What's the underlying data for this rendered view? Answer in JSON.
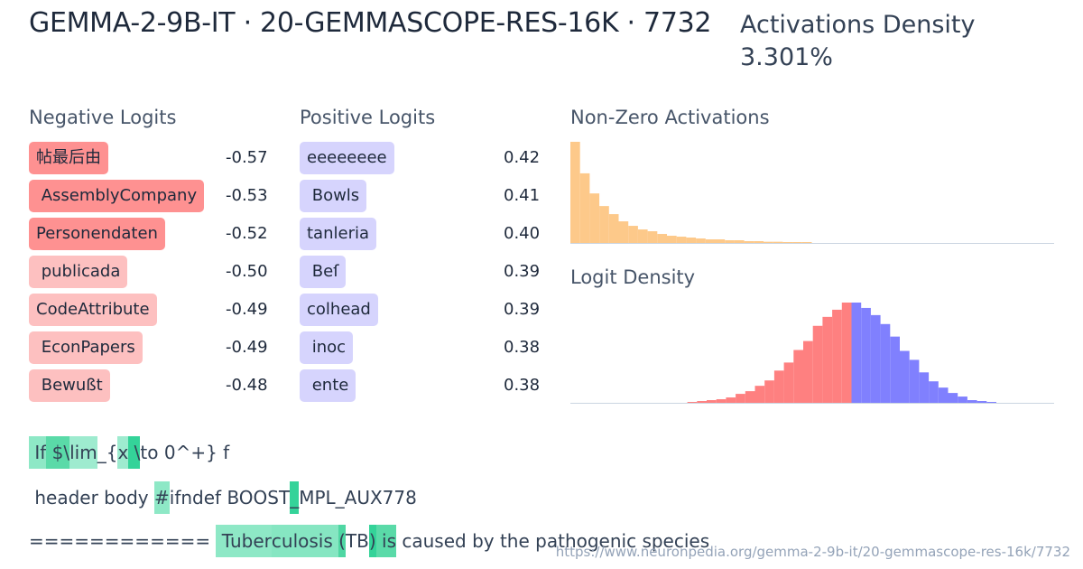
{
  "header": {
    "title": "GEMMA-2-9B-IT · 20-GEMMASCOPE-RES-16K · 7732",
    "density_label": "Activations Density",
    "density_value": "3.301%"
  },
  "negative_logits": {
    "label": "Negative Logits",
    "items": [
      {
        "token": "帖最后由",
        "value": "-0.57",
        "color": "#fe9191"
      },
      {
        "token": " AssemblyCompany",
        "value": "-0.53",
        "color": "#fe9191"
      },
      {
        "token": "Personendaten",
        "value": "-0.52",
        "color": "#fe9191"
      },
      {
        "token": " publicada",
        "value": "-0.50",
        "color": "#fdc0c0"
      },
      {
        "token": "CodeAttribute",
        "value": "-0.49",
        "color": "#fdc0c0"
      },
      {
        "token": " EconPapers",
        "value": "-0.49",
        "color": "#fdc0c0"
      },
      {
        "token": " Bewußt",
        "value": "-0.48",
        "color": "#fdc0c0"
      }
    ]
  },
  "positive_logits": {
    "label": "Positive Logits",
    "items": [
      {
        "token": "eeeeeeee",
        "value": "0.42"
      },
      {
        "token": " Bowls",
        "value": "0.41"
      },
      {
        "token": "tanleria",
        "value": "0.40"
      },
      {
        "token": " Beſ",
        "value": "0.39"
      },
      {
        "token": "colhead",
        "value": "0.39"
      },
      {
        "token": " inoc",
        "value": "0.38"
      },
      {
        "token": " ente",
        "value": "0.38"
      }
    ],
    "color": "#d6d4fd"
  },
  "activations_chart": {
    "label": "Non-Zero Activations",
    "type": "bar",
    "color": "#fdc98a",
    "values": [
      337,
      232,
      165,
      123,
      96,
      72,
      57,
      45,
      39,
      30,
      24,
      21,
      18,
      15,
      12,
      12,
      9,
      9,
      6,
      6,
      4,
      4,
      3,
      3,
      3
    ]
  },
  "logit_chart": {
    "label": "Logit Density",
    "type": "bar",
    "negative_color": "#fe8080",
    "positive_color": "#8080fe",
    "negative_values": [
      1,
      2,
      3,
      4,
      6,
      10,
      13,
      19,
      25,
      36,
      45,
      59,
      69,
      86,
      96,
      104,
      112
    ],
    "positive_values": [
      112,
      106,
      98,
      88,
      74,
      58,
      48,
      34,
      24,
      17,
      11,
      7,
      3,
      2,
      1
    ]
  },
  "examples": [
    [
      {
        "t": " If",
        "c": "#8ee8c6"
      },
      {
        "t": " $\\",
        "c": "#5adaa8"
      },
      {
        "t": "lim",
        "c": "#9eebcf"
      },
      {
        "t": "_{",
        "c": ""
      },
      {
        "t": "x",
        "c": "#9eebcf"
      },
      {
        "t": " \\",
        "c": "#34d399"
      },
      {
        "t": "to 0^+} f",
        "c": ""
      }
    ],
    [
      {
        "t": " header body ",
        "c": ""
      },
      {
        "t": "#",
        "c": "#8ee8c6"
      },
      {
        "t": "ifndef BOOST",
        "c": ""
      },
      {
        "t": "_",
        "c": "#34d399"
      },
      {
        "t": "MPL_AUX778",
        "c": ""
      }
    ],
    [
      {
        "t": "============ ",
        "c": ""
      },
      {
        "t": " Tuber",
        "c": "#8ee8c6"
      },
      {
        "t": "culosis ",
        "c": "#86e6c2"
      },
      {
        "t": "(",
        "c": "#4fd7a3"
      },
      {
        "t": "TB",
        "c": ""
      },
      {
        "t": ")",
        "c": "#34d399"
      },
      {
        "t": " is",
        "c": "#5adaa8"
      },
      {
        "t": " caused by the pathogenic species",
        "c": ""
      }
    ]
  ],
  "footer": {
    "url": "https://www.neuronpedia.org/gemma-2-9b-it/20-gemmascope-res-16k/7732"
  }
}
